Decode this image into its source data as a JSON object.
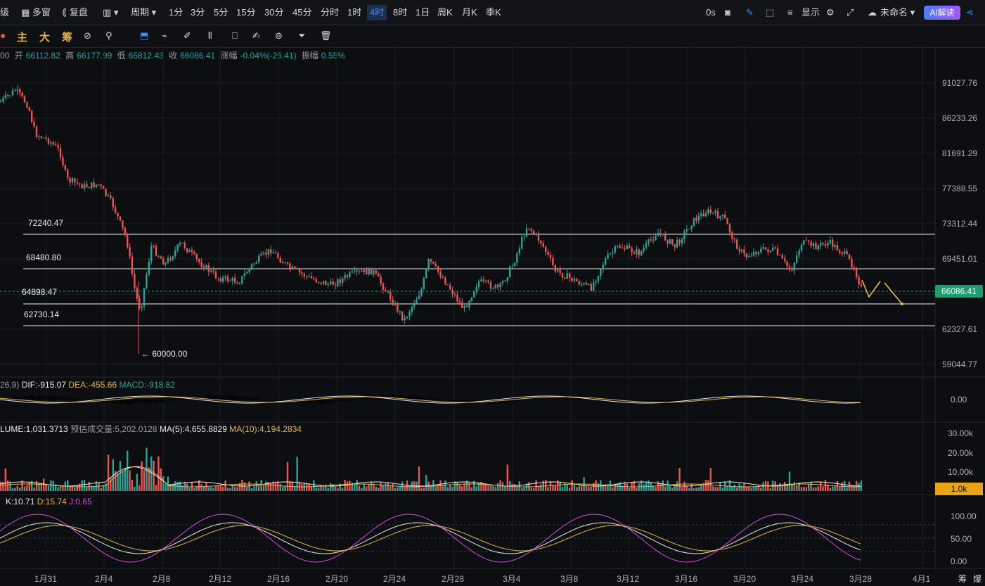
{
  "toolbar": {
    "items": [
      "级",
      "多窗",
      "复盘",
      "周期",
      "1分",
      "3分",
      "5分",
      "15分",
      "30分",
      "45分",
      "分时",
      "1时",
      "4时",
      "8时",
      "1日",
      "周K",
      "月K",
      "季K"
    ],
    "active": "4时",
    "timer": "0s",
    "display_label": "显示",
    "workspace_name": "未命名",
    "ai_label": "AI解读"
  },
  "toolbar2": {
    "tabs": [
      "主",
      "大",
      "筹"
    ]
  },
  "ohlc": {
    "time_prefix": "00",
    "open_label": "开",
    "open": "66112.82",
    "high_label": "高",
    "high": "66177.99",
    "low_label": "低",
    "low": "65812.43",
    "close_label": "收",
    "close": "66086.41",
    "change_label": "涨幅",
    "change": "-0.04%(-26.41)",
    "amp_label": "振幅",
    "amp": "0.55%"
  },
  "price_axis": [
    "91027.76",
    "86233.26",
    "81691.29",
    "77388.55",
    "73312.44",
    "69451.01",
    "62327.61",
    "59044.77"
  ],
  "current_price": "66086.41",
  "levels": [
    {
      "label": "72240.47",
      "price": 72240.47
    },
    {
      "label": "68480.80",
      "price": 68480.8
    },
    {
      "label": "64898.47",
      "price": 64898.47
    },
    {
      "label": "62730.14",
      "price": 62730.14
    }
  ],
  "low_marker": "← 60000.00",
  "macd": {
    "params": "26,9)",
    "dif": "DIF:-915.07",
    "dea": "DEA:-455.66",
    "macd": "MACD:-918.82",
    "axis": "0.00"
  },
  "volume": {
    "title": "LUME:1,031.3713",
    "estimate": "预估成交量:5,202.0128",
    "ma5": "MA(5):4,655.8829",
    "ma10": "MA(10):4,194.2834",
    "axis": [
      "30.00k",
      "20.00k",
      "10.00k"
    ],
    "badge": "1.0k"
  },
  "kdj": {
    "k": "K:10.71",
    "d": "D:15.74",
    "j": "J:0.65",
    "axis": [
      "100.00",
      "50.00",
      "0.00"
    ]
  },
  "dates": [
    "1月31",
    "2月4",
    "2月8",
    "2月12",
    "2月16",
    "2月20",
    "2月24",
    "2月28",
    "3月4",
    "3月8",
    "3月12",
    "3月16",
    "3月20",
    "3月24",
    "3月28",
    "4月1"
  ],
  "bottom_right": [
    "筹",
    "爆"
  ],
  "colors": {
    "up": "#26a69a",
    "down": "#ef5350",
    "accent": "#3b8cff",
    "arrow": "#f5c542"
  }
}
